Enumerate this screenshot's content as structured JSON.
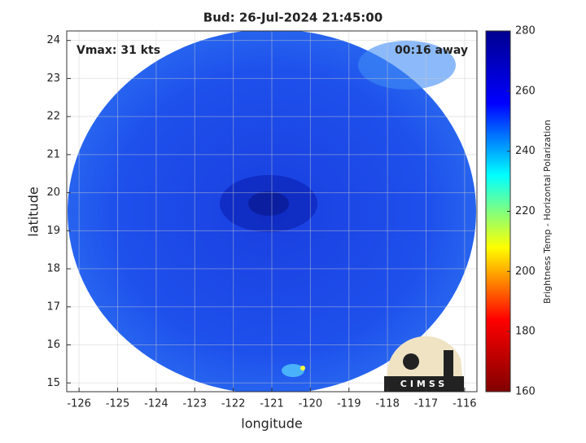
{
  "chart_data": {
    "type": "map",
    "title": "Bud: 26-Jul-2024 21:45:00",
    "xlabel": "longitude",
    "ylabel": "latitude",
    "xlim": [
      -126.32,
      -115.68
    ],
    "ylim": [
      14.77,
      24.25
    ],
    "xticks": [
      -126,
      -125,
      -124,
      -123,
      -122,
      -121,
      -120,
      -119,
      -118,
      -117,
      -116
    ],
    "yticks": [
      15,
      16,
      17,
      18,
      19,
      20,
      21,
      22,
      23,
      24
    ],
    "grid": true,
    "annotations": [
      "Vmax: 31 kts",
      "00:16 away"
    ],
    "logo": "CIMSS",
    "colorbar": {
      "label": "Brightness Temp - Horizontal Polarization",
      "lim": [
        160,
        280
      ],
      "ticks": [
        160,
        180,
        200,
        220,
        240,
        260,
        280
      ],
      "colormap": [
        "#800000",
        "#ff0000",
        "#ffff00",
        "#00ffff",
        "#0000ff",
        "#00008f"
      ]
    }
  }
}
